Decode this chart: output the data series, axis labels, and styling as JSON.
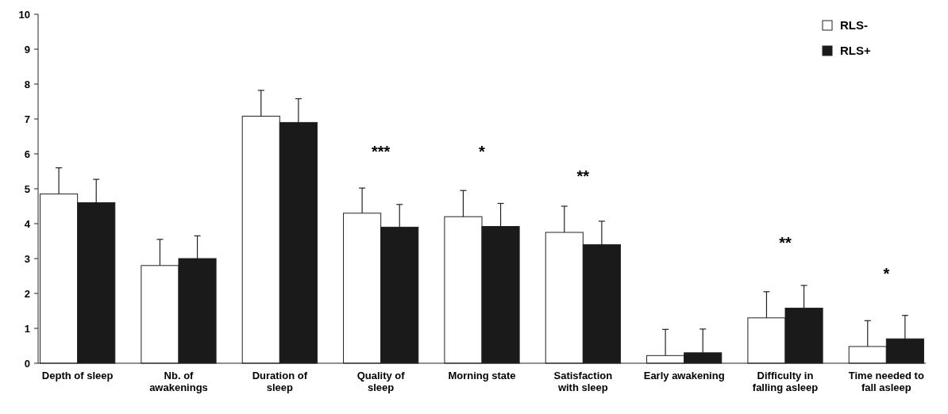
{
  "chart_data": {
    "type": "bar",
    "categories": [
      "Depth of sleep",
      "Nb. of awakenings",
      "Duration of sleep",
      "Quality of sleep",
      "Morning state",
      "Satisfaction with sleep",
      "Early awakening",
      "Difficulty in falling asleep",
      "Time needed to fall asleep"
    ],
    "series": [
      {
        "name": "RLS-",
        "color": "#ffffff",
        "values": [
          4.85,
          2.8,
          7.08,
          4.3,
          4.2,
          3.75,
          0.22,
          1.3,
          0.48
        ],
        "errors": [
          0.75,
          0.75,
          0.74,
          0.72,
          0.75,
          0.75,
          0.75,
          0.75,
          0.74
        ]
      },
      {
        "name": "RLS+",
        "color": "#1a1a1a",
        "values": [
          4.6,
          3.0,
          6.9,
          3.9,
          3.92,
          3.4,
          0.3,
          1.58,
          0.7
        ],
        "errors": [
          0.67,
          0.65,
          0.68,
          0.65,
          0.66,
          0.67,
          0.68,
          0.65,
          0.67
        ]
      }
    ],
    "ylim": [
      0,
      10
    ],
    "yticks": [
      0,
      1,
      2,
      3,
      4,
      5,
      6,
      7,
      8,
      9,
      10
    ],
    "grid": false,
    "legend": "top right",
    "annotations": [
      "***",
      "*",
      "**",
      "**",
      "*"
    ]
  }
}
